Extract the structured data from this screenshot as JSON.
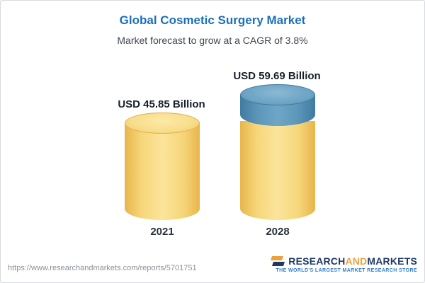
{
  "header": {
    "title": "Global Cosmetic Surgery Market",
    "subtitle": "Market forecast to grow at a CAGR of 3.8%"
  },
  "chart_data": {
    "type": "bar",
    "title": "Global Cosmetic Surgery Market",
    "subtitle": "Market forecast to grow at a CAGR of 3.8%",
    "categories": [
      "2021",
      "2028"
    ],
    "values": [
      45.85,
      59.69
    ],
    "value_labels": [
      "USD 45.85 Billion",
      "USD 59.69 Billion"
    ],
    "unit": "USD Billion",
    "ylabel": "USD Billion",
    "cagr_percent": 3.8,
    "colors": {
      "base_bar": "#f3cd6b",
      "growth_segment": "#5e97ba",
      "title": "#1a6fba"
    },
    "notes": "2028 bar shows base value in gold with growth segment above in blue; cylinder-style 3D bars"
  },
  "footer": {
    "url": "https://www.researchandmarkets.com/reports/5701751",
    "logo": {
      "part1": "RESEARCH",
      "part2": "AND",
      "part3": "MARKETS",
      "tagline": "THE WORLD'S LARGEST MARKET RESEARCH STORE"
    }
  }
}
